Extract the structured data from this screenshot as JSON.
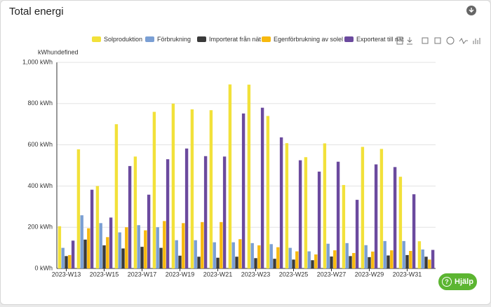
{
  "header": {
    "title": "Total energi",
    "help": "Hjälp"
  },
  "chart_data": {
    "type": "bar",
    "y_axis_label": "kWhundefined",
    "categories": [
      "2023-W13",
      null,
      "2023-W15",
      null,
      "2023-W17",
      null,
      "2023-W19",
      null,
      "2023-W21",
      null,
      "2023-W23",
      null,
      "2023-W25",
      null,
      "2023-W27",
      null,
      "2023-W29",
      null,
      "2023-W31",
      null
    ],
    "series": [
      {
        "name": "Solproduktion",
        "color": "#f2e13a",
        "values": [
          205,
          578,
          400,
          700,
          543,
          760,
          800,
          772,
          768,
          893,
          892,
          740,
          608,
          540,
          607,
          405,
          590,
          580,
          445,
          132
        ]
      },
      {
        "name": "Förbrukning",
        "color": "#7a9fd4",
        "values": [
          100,
          258,
          220,
          175,
          210,
          200,
          137,
          137,
          127,
          127,
          123,
          118,
          100,
          83,
          120,
          123,
          113,
          133,
          133,
          92
        ]
      },
      {
        "name": "Importerat från nät",
        "color": "#3a3a3a",
        "values": [
          60,
          140,
          112,
          97,
          105,
          100,
          62,
          57,
          52,
          57,
          50,
          47,
          43,
          40,
          58,
          60,
          55,
          63,
          65,
          57
        ]
      },
      {
        "name": "Egenförbrukning av solel",
        "color": "#f7b90f",
        "values": [
          65,
          195,
          152,
          200,
          185,
          230,
          220,
          225,
          225,
          142,
          112,
          103,
          83,
          68,
          88,
          75,
          82,
          88,
          85,
          43
        ]
      },
      {
        "name": "Exporterat till nät",
        "color": "#6b4a9e",
        "values": [
          135,
          382,
          247,
          497,
          358,
          530,
          582,
          545,
          543,
          752,
          780,
          636,
          525,
          470,
          518,
          333,
          505,
          492,
          360,
          90
        ]
      }
    ],
    "ylim": [
      0,
      1000
    ],
    "yticks": [
      {
        "value": 0,
        "label": "0 kWh"
      },
      {
        "value": 200,
        "label": "200 kWh"
      },
      {
        "value": 400,
        "label": "400 kWh"
      },
      {
        "value": 600,
        "label": "600 kWh"
      },
      {
        "value": 800,
        "label": "800 kWh"
      },
      {
        "value": 1000,
        "label": "1,000 kWh"
      }
    ],
    "grid": true
  }
}
